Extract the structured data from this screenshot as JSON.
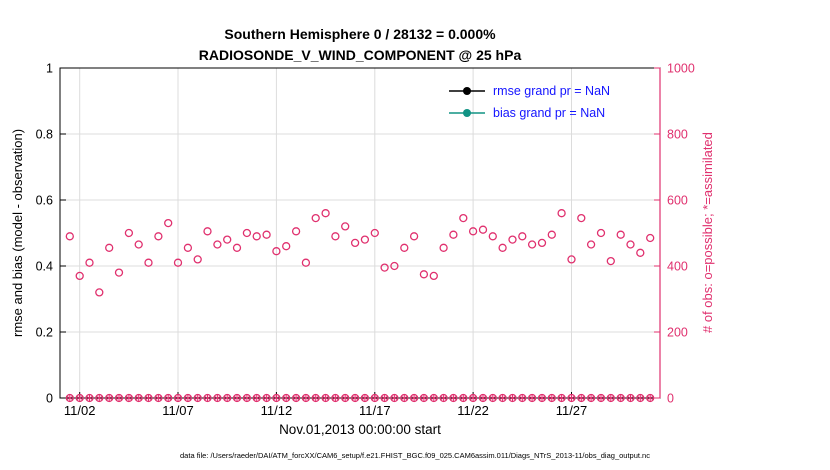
{
  "colors": {
    "accent_pink": "#e0306e",
    "teal": "#119384",
    "legend_blue": "#1414ff",
    "grid": "#dcdcdc",
    "black": "#000000"
  },
  "footer": "data file: /Users/raeder/DAI/ATM_forcXX/CAM6_setup/f.e21.FHIST_BGC.f09_025.CAM6assim.011/Diags_NTrS_2013-11/obs_diag_output.nc",
  "chart_data": {
    "type": "scatter",
    "title_line1": "Southern Hemisphere 0 / 28132 = 0.000%",
    "title_line2": "RADIOSONDE_V_WIND_COMPONENT @ 25 hPa",
    "xlabel": "Nov.01,2013 00:00:00 start",
    "ylabel_left": "rmse and bias (model - observation)",
    "ylabel_right": "# of obs: o=possible; *=assimilated",
    "ylim_left": [
      0,
      1
    ],
    "ylim_right": [
      0,
      1000
    ],
    "xlim_days": [
      0,
      30.5
    ],
    "grid": true,
    "legend_position": "top-right-inside",
    "xticks": [
      {
        "day": 1,
        "label": "11/02"
      },
      {
        "day": 6,
        "label": "11/07"
      },
      {
        "day": 11,
        "label": "11/12"
      },
      {
        "day": 16,
        "label": "11/17"
      },
      {
        "day": 21,
        "label": "11/22"
      },
      {
        "day": 26,
        "label": "11/27"
      }
    ],
    "yticks_left": [
      0,
      0.2,
      0.4,
      0.6,
      0.8,
      1
    ],
    "yticks_right": [
      0,
      200,
      400,
      600,
      800,
      1000
    ],
    "legend": [
      {
        "name": "rmse",
        "label": "rmse grand pr = NaN",
        "color": "#000000",
        "marker": "filled-circle-line"
      },
      {
        "name": "bias",
        "label": "bias grand pr = NaN",
        "color": "#119384",
        "marker": "filled-circle-line"
      }
    ],
    "series": [
      {
        "name": "possible_obs",
        "marker": "o",
        "axis": "right",
        "x_start_day": 0.5,
        "x_step_days": 0.5,
        "values": [
          490,
          370,
          410,
          320,
          455,
          380,
          500,
          465,
          410,
          490,
          530,
          410,
          455,
          420,
          505,
          465,
          480,
          455,
          500,
          490,
          495,
          445,
          460,
          505,
          410,
          545,
          560,
          490,
          520,
          470,
          480,
          500,
          395,
          400,
          455,
          490,
          375,
          370,
          455,
          495,
          545,
          505,
          510,
          490,
          455,
          480,
          490,
          465,
          470,
          495,
          560,
          420,
          545,
          465,
          500,
          415,
          495,
          465,
          440,
          485
        ]
      },
      {
        "name": "assimilated_obs",
        "marker": "*",
        "axis": "right",
        "x_start_day": 0.5,
        "x_step_days": 0.5,
        "constant_value": 0,
        "count": 60
      }
    ]
  }
}
